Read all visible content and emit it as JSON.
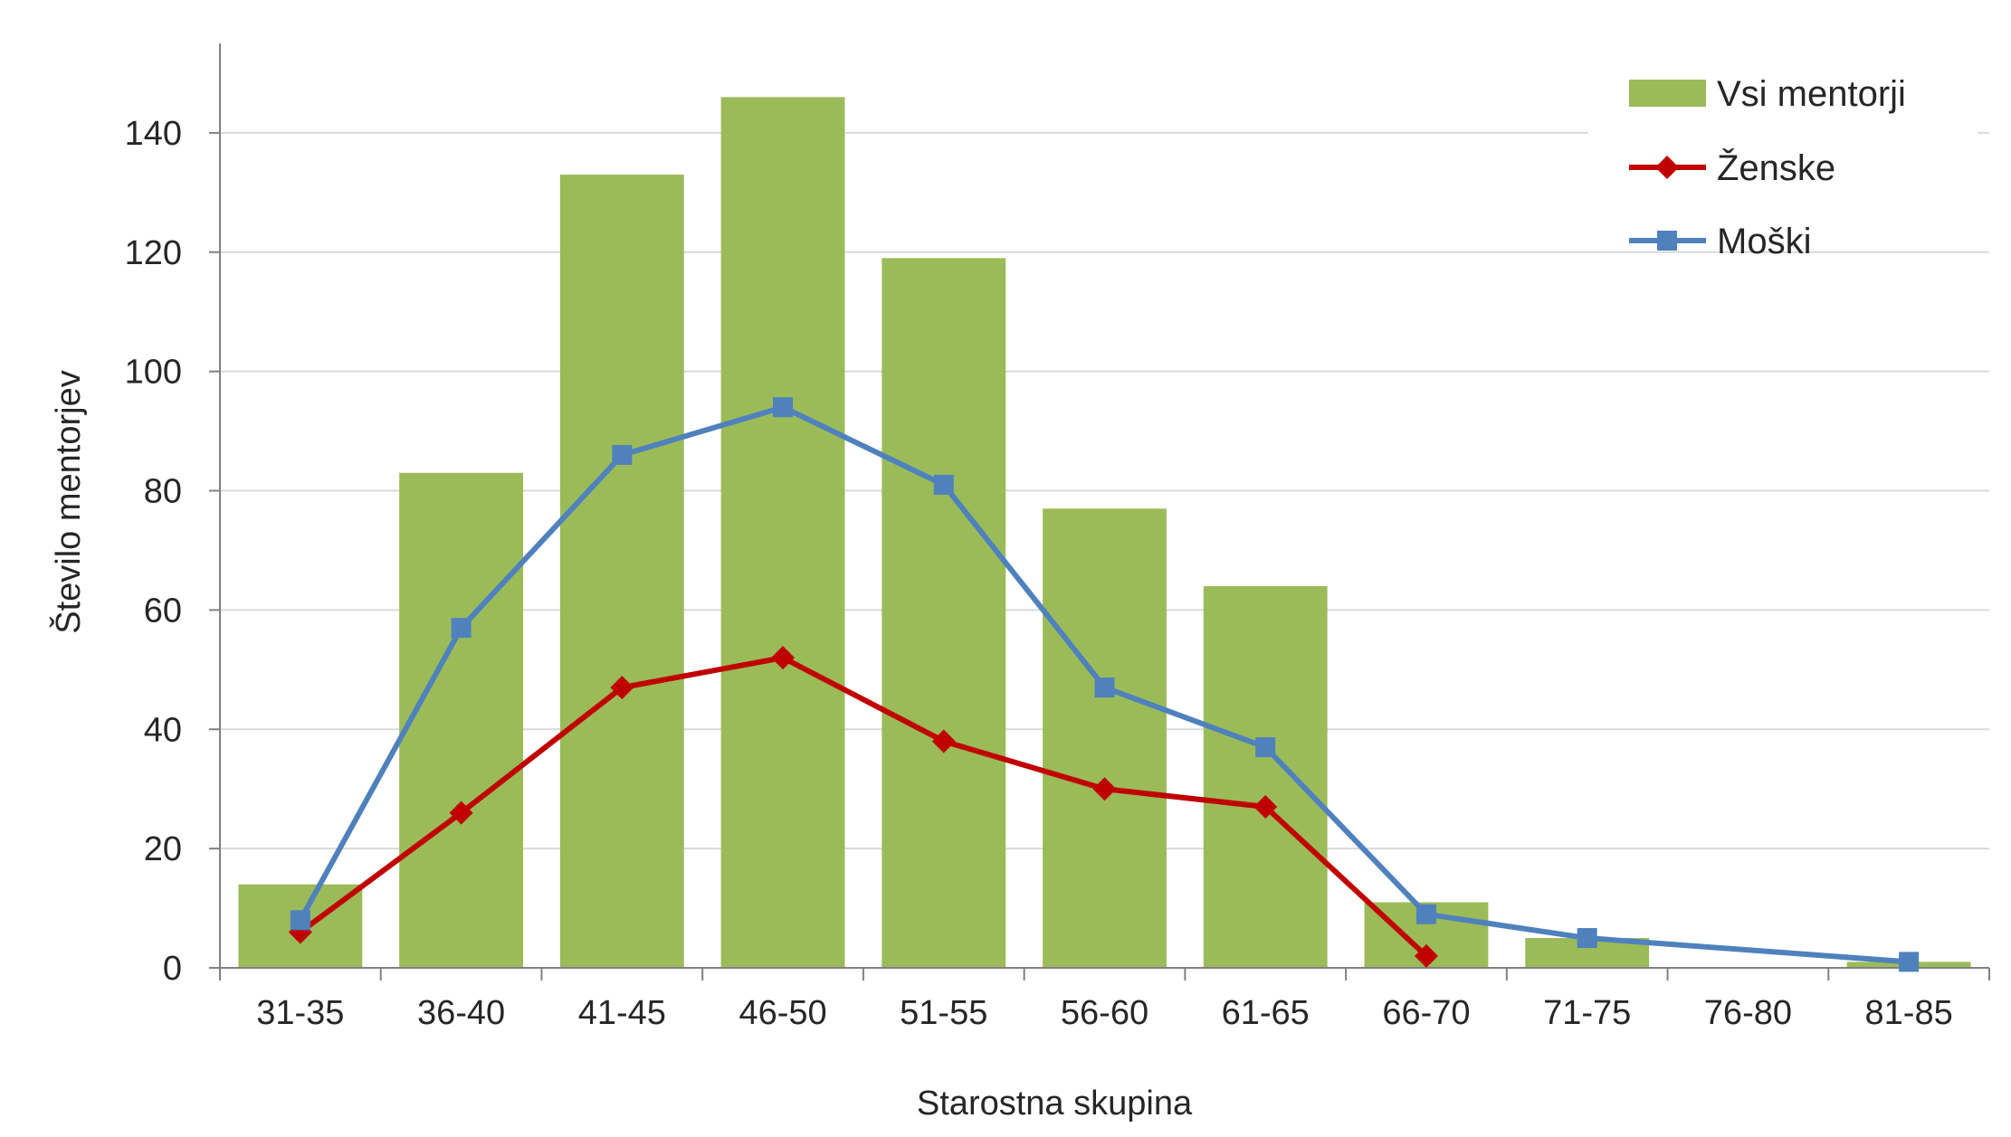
{
  "chart_data": {
    "type": "bar",
    "categories": [
      "31-35",
      "36-40",
      "41-45",
      "46-50",
      "51-55",
      "56-60",
      "61-65",
      "66-70",
      "71-75",
      "76-80",
      "81-85"
    ],
    "xlabel": "Starostna skupina",
    "ylabel": "Število mentorjev",
    "ylim": [
      0,
      155
    ],
    "yticks": [
      0,
      20,
      40,
      60,
      80,
      100,
      120,
      140
    ],
    "grid": true,
    "legend_position": "top-right",
    "series": [
      {
        "name": "Vsi mentorji",
        "type": "bar",
        "color": "#9bbb59",
        "values": [
          14,
          83,
          133,
          146,
          119,
          77,
          64,
          11,
          5,
          0,
          1
        ]
      },
      {
        "name": "Ženske",
        "type": "line",
        "marker": "diamond",
        "color": "#c00000",
        "values": [
          6,
          26,
          47,
          52,
          38,
          30,
          27,
          2,
          null,
          null,
          null
        ]
      },
      {
        "name": "Moški",
        "type": "line",
        "marker": "square",
        "color": "#4f81bd",
        "values": [
          8,
          57,
          86,
          94,
          81,
          47,
          37,
          9,
          5,
          null,
          1
        ]
      }
    ]
  }
}
